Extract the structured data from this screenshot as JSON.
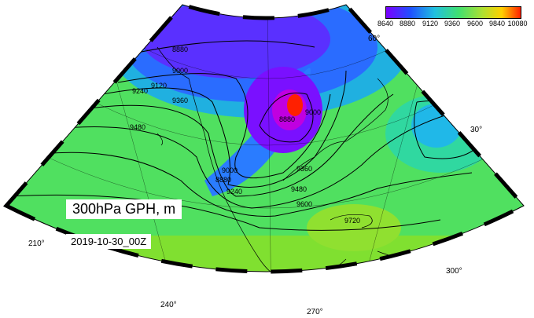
{
  "title": "300hPa GPH, m",
  "date": "2019-10-30_00Z",
  "colorbar": {
    "ticks": [
      "8640",
      "8880",
      "9120",
      "9360",
      "9600",
      "9840",
      "10080"
    ],
    "colors": [
      "#7a00ff",
      "#2050ff",
      "#20c0e0",
      "#40e070",
      "#b0e030",
      "#ffd000",
      "#ff2000"
    ]
  },
  "longitude_labels": [
    "210°",
    "240°",
    "270°",
    "300°",
    "30°",
    "60°"
  ],
  "contour_labels": [
    "8880",
    "9000",
    "9120",
    "9240",
    "9360",
    "9480",
    "8880",
    "9000",
    "9240",
    "9360",
    "9480",
    "9600",
    "9720",
    "8880",
    "9000"
  ],
  "colors": {
    "low": "#7a00ff",
    "mid": "#40e070",
    "high": "#ff2000",
    "land_outline": "#000000"
  }
}
